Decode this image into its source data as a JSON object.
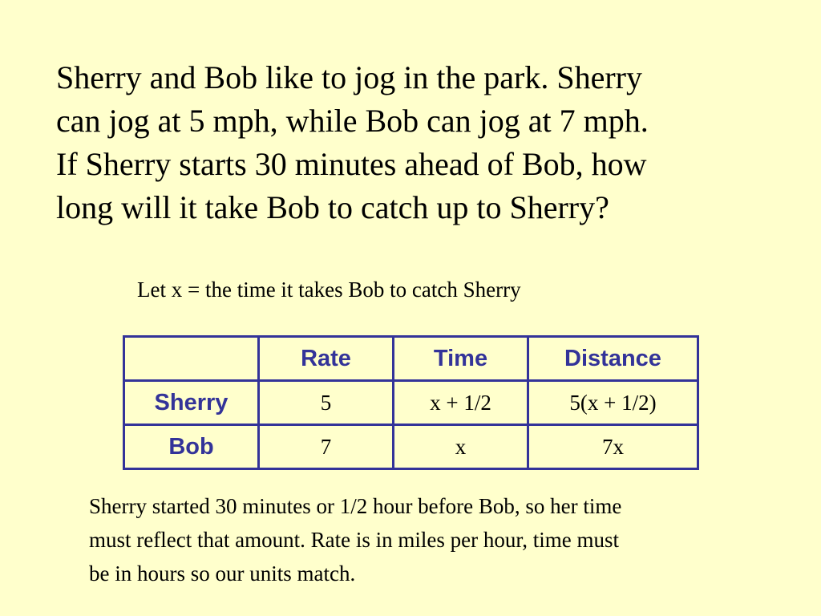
{
  "title_lines": [
    "Sherry and Bob like to jog in the park.  Sherry",
    "can jog at 5 mph, while Bob can jog at 7 mph.",
    "If Sherry starts 30 minutes ahead of Bob, how",
    "long will it take Bob to catch up to Sherry?"
  ],
  "let_statement": "Let x = the time it takes Bob to catch Sherry",
  "table": {
    "headers": [
      "",
      "Rate",
      "Time",
      "Distance"
    ],
    "rows": [
      {
        "label": "Sherry",
        "rate": "5",
        "time": "x + 1/2",
        "distance": "5(x + 1/2)"
      },
      {
        "label": "Bob",
        "rate": "7",
        "time": "x",
        "distance": "7x"
      }
    ]
  },
  "explanation_lines": [
    "Sherry  started 30 minutes or 1/2 hour before Bob, so her time",
    "must reflect that amount.  Rate is in miles per hour, time must",
    "be in hours so our units match."
  ],
  "colors": {
    "background": "#ffffcc",
    "table_accent": "#333399"
  }
}
